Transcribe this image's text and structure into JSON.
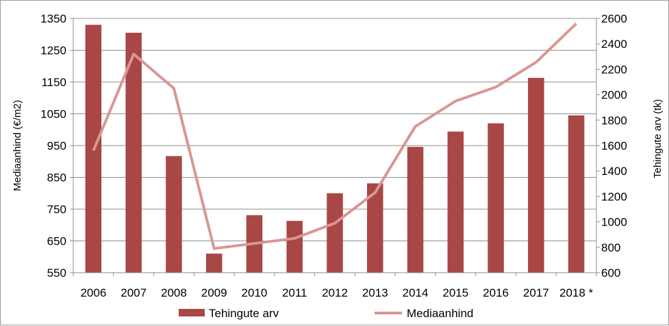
{
  "chart_data": {
    "type": "bar+line",
    "categories": [
      "2006",
      "2007",
      "2008",
      "2009",
      "2010",
      "2011",
      "2012",
      "2013",
      "2014",
      "2015",
      "2016",
      "2017",
      "2018 *"
    ],
    "series": [
      {
        "name": "Tehingute arv",
        "kind": "bar",
        "axis": "left",
        "color": "#a84745",
        "values": [
          1330,
          1305,
          917,
          610,
          731,
          713,
          800,
          831,
          946,
          994,
          1020,
          1163,
          1045
        ]
      },
      {
        "name": "Mediaanhind",
        "kind": "line",
        "axis": "right",
        "color": "#d99694",
        "values": [
          1560,
          2320,
          2050,
          790,
          830,
          870,
          990,
          1230,
          1750,
          1950,
          2060,
          2255,
          2560
        ]
      }
    ],
    "y_left": {
      "label": "Mediaanhind (€/m2)",
      "min": 550,
      "max": 1350,
      "ticks": [
        "550",
        "650",
        "750",
        "850",
        "950",
        "1050",
        "1150",
        "1250",
        "1350"
      ]
    },
    "y_right": {
      "label": "Tehingute arv (tk)",
      "min": 600,
      "max": 2600,
      "ticks": [
        "600",
        "800",
        "1000",
        "1200",
        "1400",
        "1600",
        "1800",
        "2000",
        "2200",
        "2400",
        "2600"
      ]
    },
    "grid": true,
    "legend_position": "bottom"
  }
}
